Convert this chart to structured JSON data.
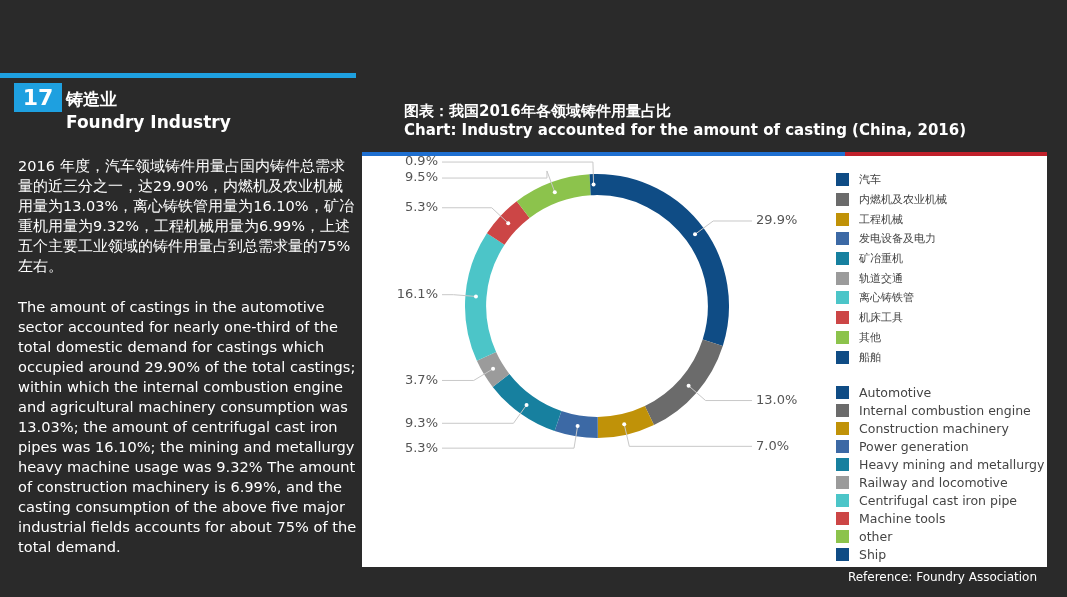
{
  "chart_data": {
    "type": "donut",
    "title": "图表：我国2016年各领域铸件用量占比",
    "subtitle": "Chart: Industry accounted for the amount of casting (China, 2016)",
    "categories": [
      "Automotive",
      "Internal combustion engine",
      "Construction machinery",
      "Power generation",
      "Heavy mining and metallurgy",
      "Railway and locomotive",
      "Centrifugal cast iron pipe",
      "Machine tools",
      "other",
      "Ship"
    ],
    "values": [
      29.9,
      13.0,
      7.0,
      5.3,
      9.3,
      3.7,
      16.1,
      5.3,
      9.5,
      0.9
    ],
    "value_labels": [
      "29.9%",
      "13.0%",
      "7.0%",
      "5.3%",
      "9.3%",
      "3.7%",
      "16.1%",
      "5.3%",
      "9.5%",
      "0.9%"
    ],
    "colors": [
      "#0f4c85",
      "#6b6b6b",
      "#c09208",
      "#3c69a5",
      "#17809f",
      "#9b9b9b",
      "#4cc5c8",
      "#cc4646",
      "#8cc34c",
      "#0f4c85"
    ],
    "legend": "right",
    "annotations": [
      "汽车",
      "内燃机及农业机械",
      "工程机械",
      "发电设备及电力",
      "矿冶重机",
      "轨道交通",
      "离心铸铁管",
      "机床工具",
      "其他",
      "船舶",
      "17",
      "铸造业",
      "Foundry Industry",
      "2016 年度，汽车领域铸件用量占国内铸件总需求量的近三分之一，达29.90%，内燃机及农业机械用量为13.03%，离心铸铁管用量为16.10%，矿冶重机用量为9.32%，工程机械用量为6.99%，上述五个主要工业领域的铸件用量占到总需求量的75%左右。",
      "The amount of castings in the automotive sector accounted for nearly one-third of the total domestic demand for castings which occupied around 29.90% of the total castings; within which the internal combustion engine and agricultural machinery consumption was 13.03%; the amount of centrifugal cast iron pipes was 16.10%; the mining and metallurgy heavy machine usage was 9.32% The amount of construction machinery is 6.99%, and the casting consumption of the above five major industrial fields accounts for about 75% of the total demand.",
      "Reference: Foundry Association"
    ]
  }
}
